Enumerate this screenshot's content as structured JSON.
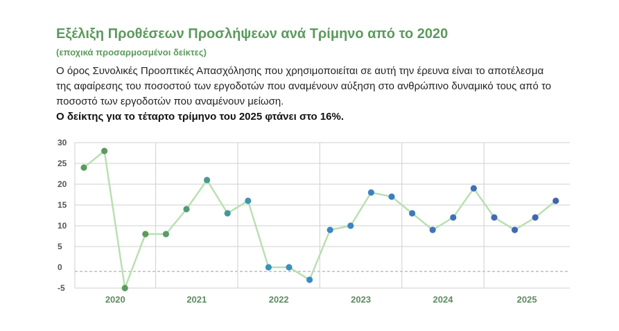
{
  "header": {
    "title": "Εξέλιξη Προθέσεων Προσλήψεων ανά Τρίμηνο από το 2020",
    "subtitle": "(εποχικά προσαρμοσμένοι δείκτες)",
    "description": "Ο όρος Συνολικές Προοπτικές Απασχόλησης που χρησιμοποιείται σε αυτή την έρευνα είναι το αποτέλεσμα της αφαίρεσης του ποσοστού των εργοδοτών που αναμένουν αύξηση στο ανθρώπινο δυναμικό τους από το ποσοστό των εργοδοτών που αναμένουν μείωση.",
    "highlight": "Ο δείκτης για το τέταρτο τρίμηνο του 2025 φτάνει στο 16%."
  },
  "chart_data": {
    "type": "line",
    "years": [
      "2020",
      "2021",
      "2022",
      "2023",
      "2024",
      "2025"
    ],
    "x": [
      "2020 Q1",
      "2020 Q2",
      "2020 Q3",
      "2020 Q4",
      "2021 Q1",
      "2021 Q2",
      "2021 Q3",
      "2021 Q4",
      "2022 Q1",
      "2022 Q2",
      "2022 Q3",
      "2022 Q4",
      "2023 Q1",
      "2023 Q2",
      "2023 Q3",
      "2023 Q4",
      "2024 Q1",
      "2024 Q2",
      "2024 Q3",
      "2024 Q4",
      "2025 Q1",
      "2025 Q2",
      "2025 Q3",
      "2025 Q4"
    ],
    "values": [
      24,
      28,
      -5,
      8,
      8,
      14,
      21,
      13,
      16,
      0,
      0,
      -3,
      9,
      10,
      18,
      17,
      13,
      9,
      12,
      19,
      12,
      9,
      12,
      16
    ],
    "ylim": [
      -5,
      30
    ],
    "yticks": [
      30,
      25,
      20,
      15,
      10,
      5,
      0,
      -5
    ],
    "ytick_labels": [
      "30",
      "25",
      "20",
      "15",
      "10",
      "5",
      "0",
      "-5"
    ],
    "grid": true,
    "zero_line": "dashed",
    "colors": {
      "line": "#b9e0b0",
      "markers": [
        "#5c9a5e",
        "#5c9a5e",
        "#5c9a5e",
        "#5c9a5e",
        "#5a9c6a",
        "#529a7b",
        "#4b9a8c",
        "#43989d",
        "#3d95ad",
        "#3a93b8",
        "#3a90bd",
        "#3a8cc0",
        "#3b89c2",
        "#3c85c2",
        "#3d81c1",
        "#3d7dbf",
        "#3e79bd",
        "#3f75bb",
        "#3f71b9",
        "#406eb7",
        "#416bb5",
        "#4268b3",
        "#4265b1",
        "#4362af"
      ],
      "grid": "#cfcfcf",
      "zero": "#9a9a9a"
    }
  }
}
